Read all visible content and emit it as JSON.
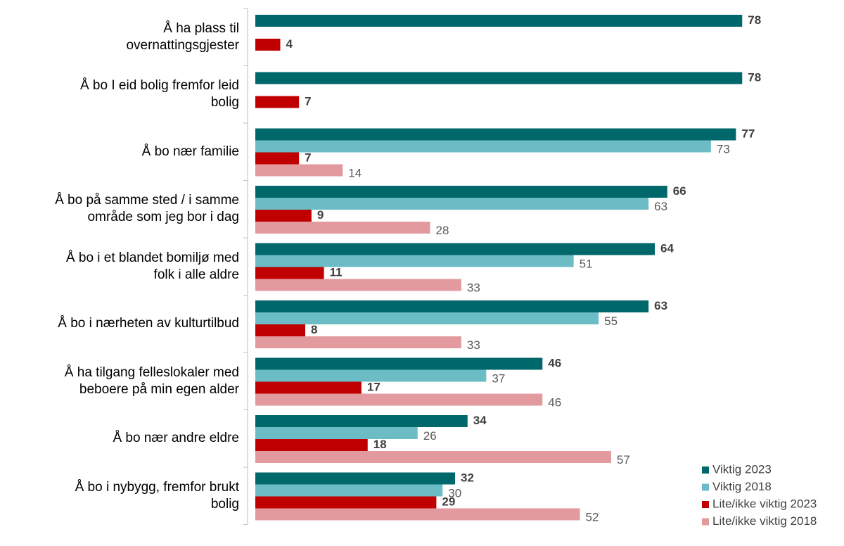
{
  "chart_data": {
    "type": "bar",
    "orientation": "horizontal",
    "categories": [
      "Å ha plass til\novernattingsgjester",
      "Å bo I eid bolig fremfor leid\nbolig",
      "Å bo nær familie",
      "Å bo på samme sted / i samme\nområde som jeg bor i dag",
      "Å bo i et blandet bomiljø med\nfolk i alle aldre",
      "Å bo i nærheten av kulturtilbud",
      "Å ha tilgang felleslokaler med\nbeboere på min egen alder",
      "Å bo nær andre eldre",
      "Å bo i nybygg, fremfor brukt\nbolig"
    ],
    "series": [
      {
        "name": "Viktig 2023",
        "color": "#00676b",
        "values": [
          78,
          78,
          77,
          66,
          64,
          63,
          46,
          34,
          32
        ]
      },
      {
        "name": "Viktig 2018",
        "color": "#6bbcc4",
        "values": [
          null,
          null,
          73,
          63,
          51,
          55,
          37,
          26,
          30
        ]
      },
      {
        "name": "Lite/ikke viktig 2023",
        "color": "#c00000",
        "values": [
          4,
          7,
          7,
          9,
          11,
          8,
          17,
          18,
          29
        ]
      },
      {
        "name": "Lite/ikke viktig 2018",
        "color": "#e39a9f",
        "values": [
          null,
          null,
          14,
          28,
          33,
          33,
          46,
          57,
          52
        ]
      }
    ],
    "xlim": [
      0,
      80
    ],
    "legend": "bottom-right"
  }
}
